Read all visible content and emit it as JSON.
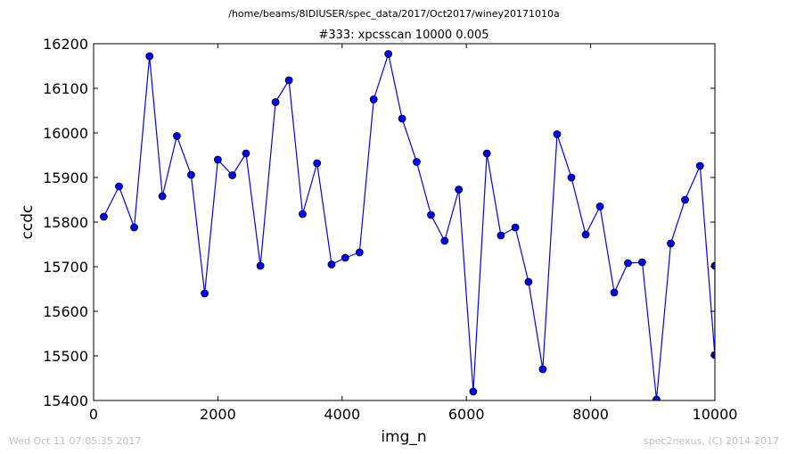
{
  "chart_data": {
    "type": "line",
    "suptitle": "/home/beams/8IDIUSER/spec_data/2017/Oct2017/winey20171010a",
    "title": "#333: xpcsscan 10000 0.005",
    "xlabel": "img_n",
    "ylabel": "ccdc",
    "xlim": [
      0,
      10000
    ],
    "ylim": [
      15400,
      16200
    ],
    "xticks": [
      "0",
      "2000",
      "4000",
      "6000",
      "8000",
      "10000"
    ],
    "yticks": [
      "15400",
      "15500",
      "15600",
      "15700",
      "15800",
      "15900",
      "16000",
      "16100",
      "16200"
    ],
    "grid": false,
    "line_color": "#0000ff",
    "marker_color": "#0000ff",
    "series": [
      {
        "x": [
          164,
          409,
          654,
          900,
          1107,
          1340,
          1570,
          1788,
          2000,
          2233,
          2453,
          2685,
          2928,
          3144,
          3364,
          3597,
          3830,
          4050,
          4280,
          4508,
          4744,
          4966,
          5200,
          5430,
          5650,
          5878,
          6110,
          6330,
          6555,
          6788,
          7000,
          7230,
          7460,
          7690,
          7920,
          8150,
          8380,
          8600,
          8830,
          9060,
          9290,
          9520,
          9760,
          9998,
          10000
        ],
        "y": [
          15812,
          15880,
          15788,
          16172,
          15858,
          15993,
          15906,
          15640,
          15940,
          15905,
          15954,
          15702,
          16069,
          16118,
          15818,
          15932,
          15705,
          15720,
          15732,
          16075,
          16177,
          16032,
          15935,
          15816,
          15758,
          15873,
          15420,
          15954,
          15770,
          15788,
          15666,
          15470,
          15997,
          15900,
          15772,
          15835,
          15642,
          15708,
          15710,
          15402,
          15752,
          15850,
          15926,
          15502,
          15702
        ]
      }
    ]
  },
  "footer": {
    "timestamp": "Wed Oct 11 07:05:35 2017",
    "credit": "spec2nexus, (C) 2014-2017"
  }
}
